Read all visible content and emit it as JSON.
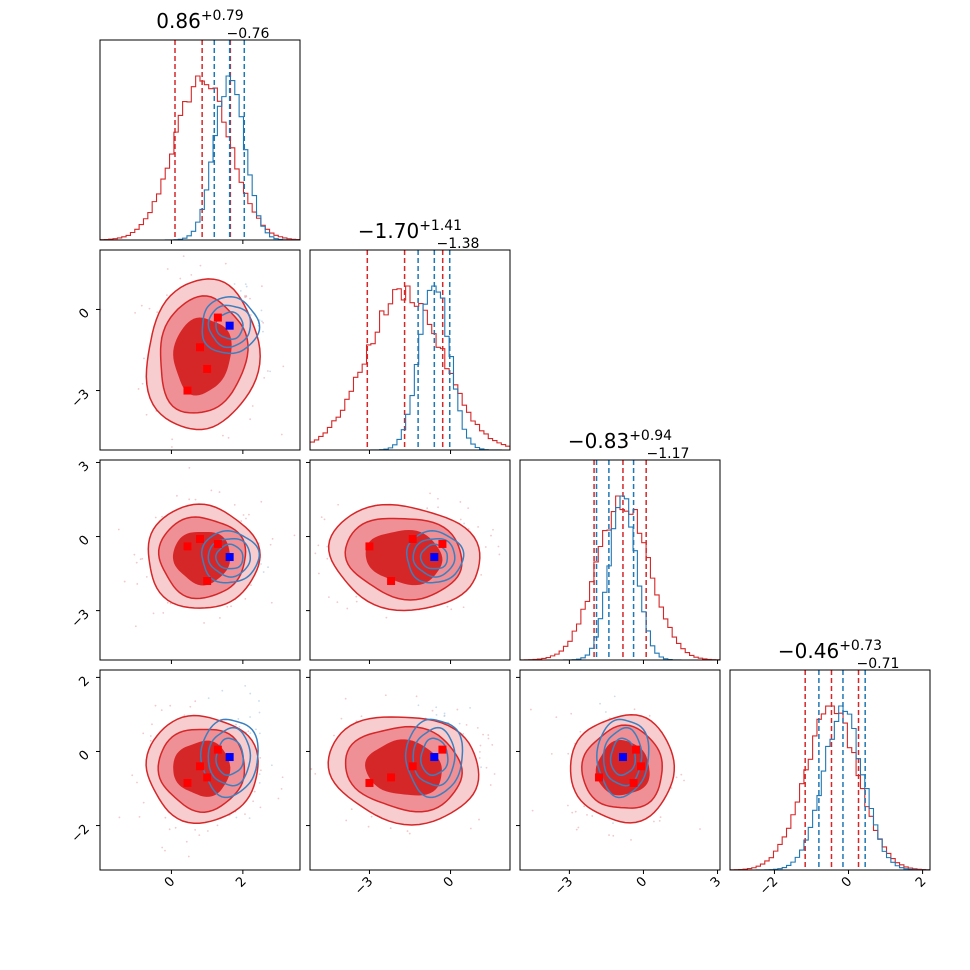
{
  "chart_data": {
    "type": "corner",
    "parameters": [
      {
        "title_value": "0.86",
        "title_plus": "+0.79",
        "title_minus": "−0.76",
        "range": [
          -2.0,
          3.6
        ]
      },
      {
        "title_value": "−1.70",
        "title_plus": "+1.41",
        "title_minus": "−1.38",
        "range": [
          -5.2,
          2.2
        ]
      },
      {
        "title_value": "−0.83",
        "title_plus": "+0.94",
        "title_minus": "−1.17",
        "range": [
          -5.0,
          3.1
        ]
      },
      {
        "title_value": "−0.46",
        "title_plus": "+0.73",
        "title_minus": "−0.71",
        "range": [
          -3.2,
          2.2
        ]
      }
    ],
    "ticks": [
      [
        {
          "v": 0,
          "label": "0"
        },
        {
          "v": 2,
          "label": "2"
        }
      ],
      [
        {
          "v": -3,
          "label": "−3"
        },
        {
          "v": 0,
          "label": "0"
        }
      ],
      [
        {
          "v": -3,
          "label": "−3"
        },
        {
          "v": 0,
          "label": "0"
        },
        {
          "v": 3,
          "label": "3"
        }
      ],
      [
        {
          "v": -2,
          "label": "−2"
        },
        {
          "v": 0,
          "label": "0"
        },
        {
          "v": 2,
          "label": "2"
        }
      ]
    ],
    "series": [
      {
        "color": "#d62728",
        "mean": [
          0.86,
          -1.7,
          -0.83,
          -0.46
        ],
        "std": [
          0.78,
          1.4,
          1.05,
          0.72
        ],
        "quantiles": [
          [
            0.1,
            0.86,
            1.65
          ],
          [
            -3.08,
            -1.7,
            -0.29
          ],
          [
            -2.0,
            -0.83,
            0.11
          ],
          [
            -1.17,
            -0.46,
            0.27
          ]
        ]
      },
      {
        "color": "#1f77b4",
        "mean": [
          1.63,
          -0.6,
          -0.83,
          -0.15
        ],
        "std": [
          0.42,
          0.55,
          0.55,
          0.55
        ],
        "quantiles": [
          [
            1.2,
            1.63,
            2.04
          ],
          [
            -1.2,
            -0.6,
            -0.03
          ],
          [
            -1.9,
            -1.4,
            -0.4
          ],
          [
            -0.8,
            -0.15,
            0.45
          ]
        ]
      }
    ],
    "markers": {
      "blue": {
        "color": "#0000ff",
        "point": [
          1.63,
          -0.6,
          -0.83,
          -0.15
        ]
      },
      "red": {
        "color": "#ff0000",
        "points": [
          [
            1.3,
            -0.3,
            -0.3,
            0.05
          ],
          [
            0.8,
            -1.4,
            -0.1,
            -0.4
          ],
          [
            1.0,
            -2.2,
            -1.8,
            -0.7
          ],
          [
            0.45,
            -3.0,
            -0.4,
            -0.85
          ]
        ]
      }
    }
  }
}
